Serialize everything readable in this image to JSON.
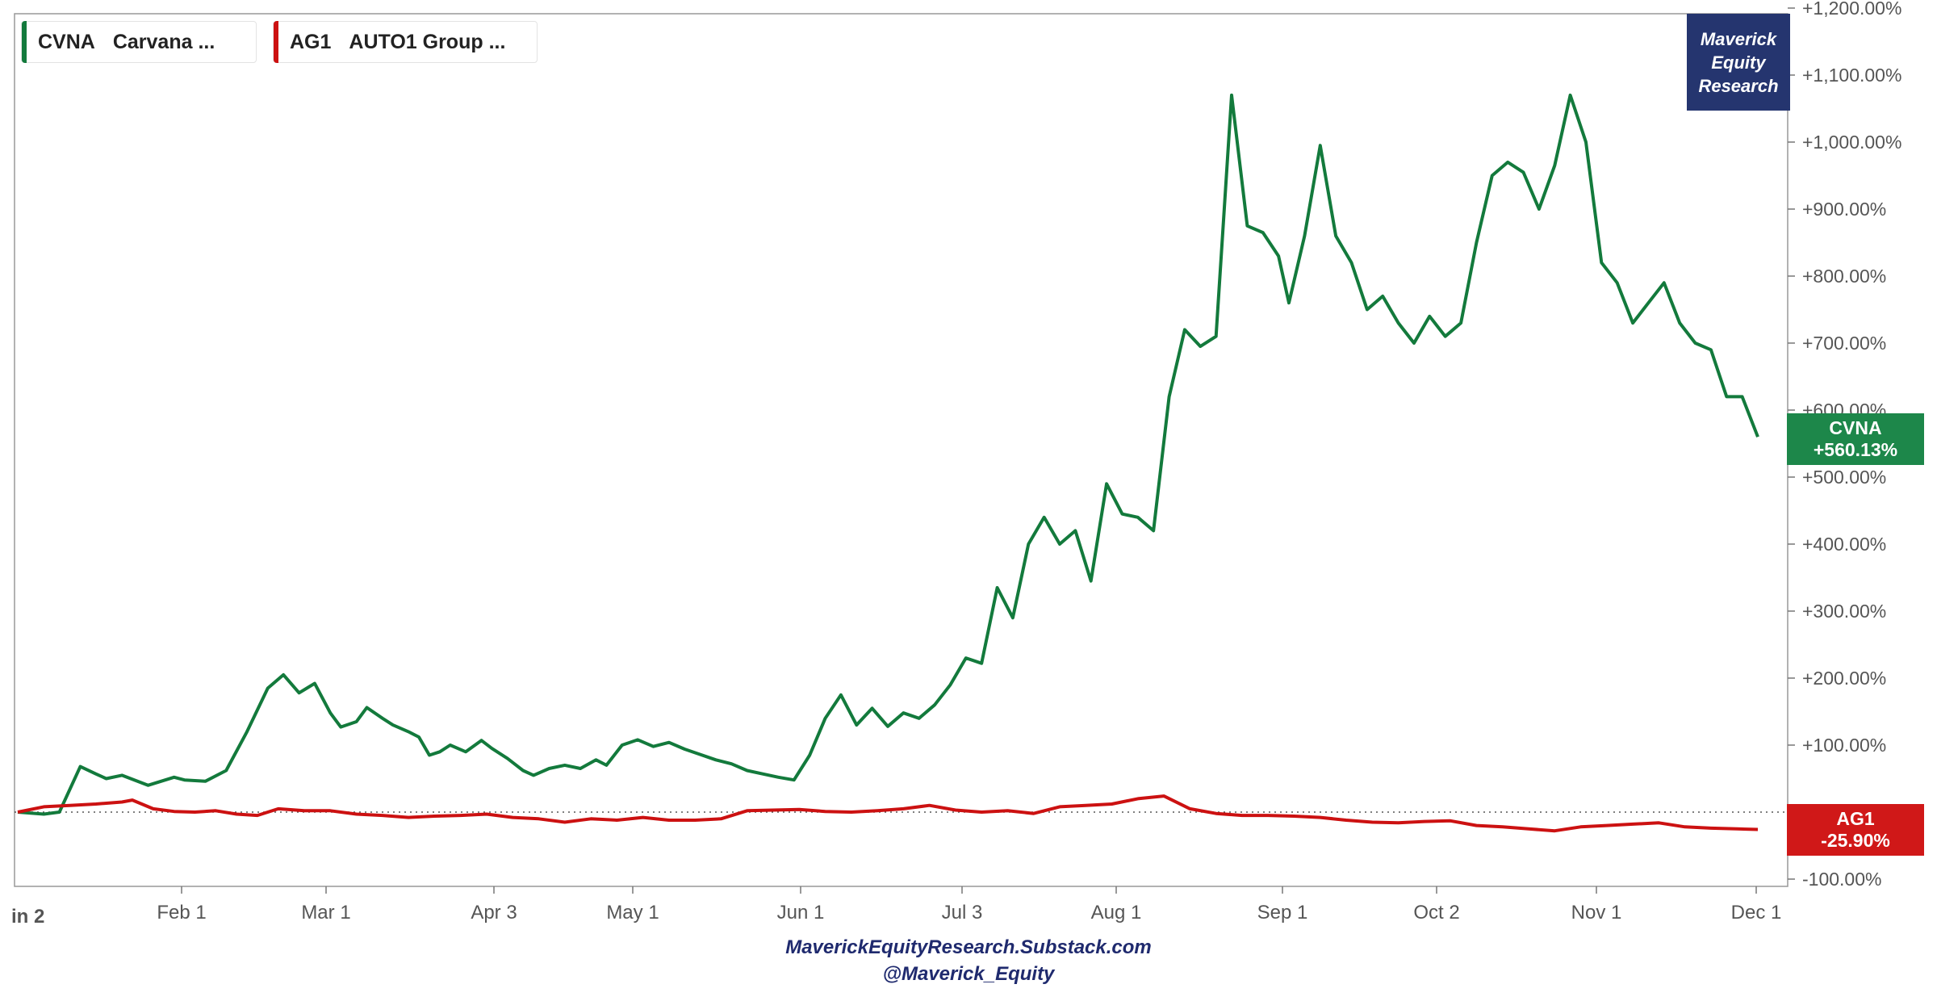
{
  "legend": [
    {
      "ticker": "CVNA",
      "name": "Carvana ...",
      "color": "#137a3c"
    },
    {
      "ticker": "AG1",
      "name": "AUTO1 Group ...",
      "color": "#cc1111"
    }
  ],
  "brand": {
    "line1": "Maverick",
    "line2": "Equity",
    "line3": "Research",
    "bg": "#25356f"
  },
  "end_labels": {
    "cvna": {
      "ticker": "CVNA",
      "value": "+560.13%",
      "bg": "#1d874a"
    },
    "ag1": {
      "ticker": "AG1",
      "value": "-25.90%",
      "bg": "#d01818"
    }
  },
  "footer": {
    "line1": "MaverickEquityResearch.Substack.com",
    "line2": "@Maverick_Equity"
  },
  "edge_label": "in 2",
  "chart_data": {
    "type": "line",
    "x_ticks": [
      "Feb 1",
      "Mar 1",
      "Apr 3",
      "May 1",
      "Jun 1",
      "Jul 3",
      "Aug 1",
      "Sep 1",
      "Oct 2",
      "Nov 1",
      "Dec 1"
    ],
    "y_ticks": [
      "-100.00%",
      "+0.00%",
      "+100.00%",
      "+200.00%",
      "+300.00%",
      "+400.00%",
      "+500.00%",
      "+600.00%",
      "+700.00%",
      "+800.00%",
      "+900.00%",
      "+1,000.00%",
      "+1,100.00%",
      "+1,200.00%"
    ],
    "ylim": [
      -115,
      1210
    ],
    "xlim": [
      0,
      334
    ],
    "baseline": 0,
    "series": [
      {
        "name": "CVNA",
        "color": "#137a3c",
        "x": [
          0,
          5,
          8,
          12,
          15,
          17,
          20,
          25,
          30,
          32,
          36,
          40,
          44,
          48,
          51,
          54,
          57,
          60,
          62,
          65,
          67,
          70,
          72,
          75,
          77,
          79,
          81,
          83,
          86,
          89,
          91,
          94,
          97,
          99,
          102,
          105,
          108,
          111,
          113,
          116,
          119,
          122,
          125,
          128,
          131,
          134,
          137,
          140,
          143,
          146,
          149,
          152,
          155,
          158,
          161,
          164,
          167,
          170,
          173,
          176,
          179,
          182,
          185,
          188,
          191,
          194,
          197,
          200,
          203,
          206,
          209,
          212,
          215,
          218,
          221,
          224,
          227,
          230,
          233,
          236,
          239,
          242,
          244,
          247,
          250,
          253,
          256,
          259,
          262,
          265,
          268,
          271,
          274,
          277,
          280,
          283,
          286,
          289,
          292,
          295,
          298,
          301,
          304,
          307,
          310,
          313,
          316,
          319,
          322,
          325,
          328,
          331,
          334
        ],
        "y": [
          0,
          -3,
          0,
          68,
          57,
          50,
          55,
          40,
          52,
          48,
          46,
          62,
          120,
          185,
          205,
          178,
          192,
          148,
          127,
          135,
          156,
          140,
          130,
          120,
          112,
          85,
          90,
          100,
          90,
          107,
          95,
          80,
          62,
          55,
          65,
          70,
          65,
          78,
          70,
          100,
          108,
          98,
          104,
          94,
          86,
          78,
          72,
          62,
          57,
          52,
          48,
          85,
          140,
          175,
          130,
          155,
          128,
          148,
          140,
          160,
          190,
          230,
          222,
          335,
          290,
          400,
          440,
          400,
          420,
          345,
          490,
          445,
          440,
          420,
          620,
          720,
          695,
          710,
          1070,
          875,
          865,
          830,
          760,
          860,
          995,
          860,
          820,
          750,
          770,
          730,
          700,
          740,
          710,
          730,
          850,
          950,
          970,
          955,
          900,
          965,
          1070,
          1000,
          820,
          790,
          730,
          760,
          790,
          730,
          700,
          690,
          620,
          620,
          560
        ],
        "end_value": 560.13
      },
      {
        "name": "AG1",
        "color": "#cc1111",
        "x": [
          0,
          5,
          10,
          15,
          20,
          22,
          26,
          30,
          34,
          38,
          42,
          46,
          50,
          55,
          60,
          65,
          70,
          75,
          80,
          85,
          90,
          95,
          100,
          105,
          110,
          115,
          120,
          125,
          130,
          135,
          140,
          145,
          150,
          155,
          160,
          165,
          170,
          175,
          180,
          185,
          190,
          195,
          200,
          205,
          210,
          215,
          220,
          225,
          230,
          235,
          240,
          245,
          250,
          255,
          260,
          265,
          270,
          275,
          280,
          285,
          290,
          295,
          300,
          305,
          310,
          315,
          320,
          325,
          330,
          334
        ],
        "y": [
          0,
          8,
          10,
          12,
          15,
          18,
          5,
          1,
          0,
          2,
          -3,
          -5,
          5,
          2,
          2,
          -3,
          -5,
          -8,
          -6,
          -5,
          -3,
          -8,
          -10,
          -15,
          -10,
          -12,
          -8,
          -12,
          -12,
          -10,
          2,
          3,
          4,
          1,
          0,
          2,
          5,
          10,
          3,
          0,
          2,
          -2,
          8,
          10,
          12,
          20,
          24,
          5,
          -2,
          -5,
          -5,
          -6,
          -8,
          -12,
          -15,
          -16,
          -14,
          -13,
          -20,
          -22,
          -25,
          -28,
          -22,
          -20,
          -18,
          -16,
          -22,
          -24,
          -25,
          -25.9
        ],
        "end_value": -25.9
      }
    ]
  }
}
